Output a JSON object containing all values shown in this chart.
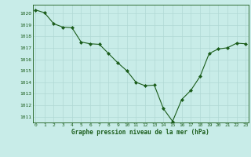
{
  "x": [
    0,
    1,
    2,
    3,
    4,
    5,
    6,
    7,
    8,
    9,
    10,
    11,
    12,
    13,
    14,
    15,
    16,
    17,
    18,
    19,
    20,
    21,
    22,
    23
  ],
  "y": [
    1020.3,
    1020.05,
    1019.1,
    1018.8,
    1018.75,
    1017.5,
    1017.35,
    1017.3,
    1016.5,
    1015.7,
    1015.0,
    1014.0,
    1013.7,
    1013.75,
    1011.7,
    1010.6,
    1012.5,
    1013.3,
    1014.5,
    1016.5,
    1016.9,
    1017.0,
    1017.4,
    1017.35
  ],
  "line_color": "#1a5c1a",
  "marker_color": "#1a5c1a",
  "bg_color": "#c8ece8",
  "grid_major_color": "#b0d8d4",
  "grid_minor_color": "#c0e4e0",
  "title": "Graphe pression niveau de la mer (hPa)",
  "title_color": "#1a5c1a",
  "tick_color": "#1a5c1a",
  "ylim": [
    1010.5,
    1020.75
  ],
  "yticks": [
    1011,
    1012,
    1013,
    1014,
    1015,
    1016,
    1017,
    1018,
    1019,
    1020
  ],
  "xticks": [
    0,
    1,
    2,
    3,
    4,
    5,
    6,
    7,
    8,
    9,
    10,
    11,
    12,
    13,
    14,
    15,
    16,
    17,
    18,
    19,
    20,
    21,
    22,
    23
  ],
  "xlim": [
    -0.3,
    23.3
  ]
}
